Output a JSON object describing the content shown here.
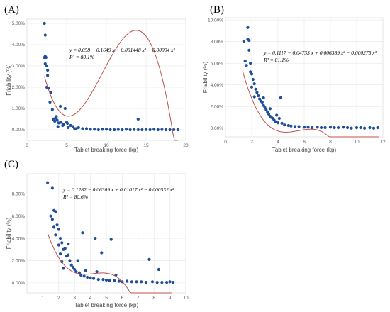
{
  "chart_data": [
    {
      "type": "scatter",
      "panel": "(A)",
      "xlabel": "Tablet breaking force (kp)",
      "ylabel": "Friability (%)",
      "xlim": [
        0,
        20
      ],
      "ylim": [
        -0.5,
        5.2
      ],
      "x_ticks": [
        0,
        5,
        10,
        15,
        20
      ],
      "y_ticks": [
        "0.00%",
        "1.00%",
        "2.00%",
        "3.00%",
        "4.00%",
        "5.00%"
      ],
      "y_tick_values": [
        0,
        1,
        2,
        3,
        4,
        5
      ],
      "equation": "y  =  0.058 − 0.1649 x + 0.001448 x² − 0.00004 x³",
      "r2": "R² = 80.1%",
      "fit_coefficients": [
        7.02,
        -2.8,
        0.37,
        -0.013
      ],
      "fit_range": [
        2.2,
        19
      ],
      "point_color": "#1f4e9b",
      "curve_color": "#c0504d",
      "points": [
        [
          2.2,
          5.0
        ],
        [
          2.3,
          4.45
        ],
        [
          2.2,
          3.4
        ],
        [
          2.3,
          3.45
        ],
        [
          2.4,
          3.4
        ],
        [
          2.5,
          3.0
        ],
        [
          2.3,
          3.1
        ],
        [
          2.6,
          2.8
        ],
        [
          2.6,
          2.55
        ],
        [
          2.7,
          1.95
        ],
        [
          2.5,
          2.0
        ],
        [
          3.0,
          1.75
        ],
        [
          3.2,
          0.95
        ],
        [
          3.6,
          0.55
        ],
        [
          3.7,
          0.62
        ],
        [
          3.5,
          0.4
        ],
        [
          3.8,
          0.45
        ],
        [
          4.0,
          0.32
        ],
        [
          4.2,
          1.1
        ],
        [
          4.3,
          0.35
        ],
        [
          4.6,
          0.25
        ],
        [
          4.8,
          1.0
        ],
        [
          5.0,
          0.35
        ],
        [
          5.1,
          0.3
        ],
        [
          5.2,
          0.1
        ],
        [
          5.5,
          0.2
        ],
        [
          5.8,
          0.15
        ],
        [
          6.0,
          0.05
        ],
        [
          6.5,
          0.1
        ],
        [
          7.0,
          0.05
        ],
        [
          7.5,
          0.05
        ],
        [
          8.0,
          0.02
        ],
        [
          8.5,
          0.02
        ],
        [
          9.0,
          0.0
        ],
        [
          9.5,
          0.02
        ],
        [
          10.0,
          0.02
        ],
        [
          10.5,
          0.0
        ],
        [
          11.0,
          0.0
        ],
        [
          11.5,
          0.01
        ],
        [
          12.0,
          0.0
        ],
        [
          12.5,
          0.02
        ],
        [
          13.0,
          0.0
        ],
        [
          13.5,
          0.01
        ],
        [
          14.0,
          0.0
        ],
        [
          14.5,
          0.0
        ],
        [
          15.0,
          0.01
        ],
        [
          15.5,
          0.0
        ],
        [
          16.0,
          0.02
        ],
        [
          16.5,
          0.0
        ],
        [
          17.0,
          0.01
        ],
        [
          17.5,
          0.0
        ],
        [
          18.0,
          0.0
        ],
        [
          18.5,
          0.0
        ],
        [
          19.0,
          0.0
        ],
        [
          14.0,
          0.5
        ],
        [
          4.5,
          0.2
        ],
        [
          3.9,
          0.15
        ],
        [
          6.2,
          0.05
        ],
        [
          3.3,
          0.5
        ],
        [
          2.9,
          1.3
        ]
      ]
    },
    {
      "type": "scatter",
      "panel": "(B)",
      "xlabel": "Tablet breaking force (kp)",
      "ylabel": "Friability (%)",
      "xlim": [
        0,
        12
      ],
      "ylim": [
        -0.8,
        10.2
      ],
      "x_ticks": [
        0,
        2,
        4,
        6,
        8,
        10,
        12
      ],
      "y_ticks": [
        "0.00%",
        "2.00%",
        "4.00%",
        "6.00%",
        "8.00%",
        "10.00%"
      ],
      "y_tick_values": [
        0,
        2,
        4,
        6,
        8,
        10
      ],
      "equation": "y  =  0.1117 − 0.04733 x + 0.006389 x² − 0.000275 x³",
      "r2": "R² = 81.1%",
      "fit_coefficients": [
        12.96,
        -7.59,
        1.41,
        -0.0848
      ],
      "fit_range": [
        1.3,
        11.7
      ],
      "point_color": "#1f4e9b",
      "curve_color": "#c0504d",
      "points": [
        [
          1.4,
          8.0
        ],
        [
          1.7,
          9.3
        ],
        [
          1.7,
          8.2
        ],
        [
          1.8,
          8.1
        ],
        [
          1.8,
          7.2
        ],
        [
          1.5,
          6.2
        ],
        [
          1.9,
          6.0
        ],
        [
          1.6,
          5.8
        ],
        [
          1.9,
          5.2
        ],
        [
          2.0,
          5.0
        ],
        [
          2.1,
          4.5
        ],
        [
          2.2,
          4.1
        ],
        [
          2.0,
          3.8
        ],
        [
          2.3,
          3.6
        ],
        [
          2.4,
          3.3
        ],
        [
          2.5,
          3.0
        ],
        [
          2.6,
          2.7
        ],
        [
          2.2,
          2.9
        ],
        [
          2.7,
          2.5
        ],
        [
          2.8,
          2.4
        ],
        [
          2.9,
          2.1
        ],
        [
          3.0,
          1.9
        ],
        [
          3.1,
          1.7
        ],
        [
          3.2,
          1.5
        ],
        [
          3.3,
          1.3
        ],
        [
          3.4,
          1.1
        ],
        [
          3.5,
          1.0
        ],
        [
          3.6,
          0.9
        ],
        [
          3.7,
          0.75
        ],
        [
          3.8,
          0.6
        ],
        [
          4.0,
          0.5
        ],
        [
          4.2,
          2.8
        ],
        [
          4.3,
          0.45
        ],
        [
          4.5,
          0.3
        ],
        [
          4.8,
          0.25
        ],
        [
          5.0,
          0.2
        ],
        [
          5.3,
          0.15
        ],
        [
          5.6,
          0.15
        ],
        [
          6.0,
          0.1
        ],
        [
          6.3,
          0.1
        ],
        [
          6.6,
          0.05
        ],
        [
          7.0,
          0.1
        ],
        [
          7.3,
          0.05
        ],
        [
          7.6,
          0.05
        ],
        [
          8.0,
          0.1
        ],
        [
          8.3,
          0.05
        ],
        [
          8.6,
          0.05
        ],
        [
          9.0,
          0.1
        ],
        [
          9.3,
          0.05
        ],
        [
          9.6,
          0.0
        ],
        [
          10.0,
          0.05
        ],
        [
          10.3,
          0.05
        ],
        [
          10.6,
          0.0
        ],
        [
          11.0,
          0.05
        ],
        [
          11.3,
          0.0
        ],
        [
          11.6,
          0.05
        ],
        [
          3.9,
          1.2
        ],
        [
          3.4,
          1.8
        ],
        [
          2.9,
          2.8
        ],
        [
          4.1,
          0.9
        ]
      ]
    },
    {
      "type": "scatter",
      "panel": "(C)",
      "xlabel": "Tablet breaking force (kp)",
      "ylabel": "Friability (%)",
      "xlim": [
        0,
        10
      ],
      "ylim": [
        -0.9,
        9.8
      ],
      "x_ticks": [
        1,
        2,
        3,
        4,
        5,
        6,
        7,
        8,
        9,
        10
      ],
      "y_ticks": [
        "0.00%",
        "2.00%",
        "4.00%",
        "6.00%",
        "8.00%"
      ],
      "y_tick_values": [
        0,
        2,
        4,
        6,
        8
      ],
      "equation": "y  =  0.1282 − 0.06309 x + 0.01017 x² − 0.000532 x³",
      "r2": "R² = 80.6%",
      "fit_coefficients": [
        12.67,
        -8.79,
        2.134,
        -0.1696
      ],
      "fit_range": [
        1.3,
        9.1
      ],
      "point_color": "#1f4e9b",
      "curve_color": "#c0504d",
      "points": [
        [
          1.3,
          9.0
        ],
        [
          1.6,
          8.5
        ],
        [
          1.5,
          6.0
        ],
        [
          1.7,
          6.5
        ],
        [
          1.8,
          6.4
        ],
        [
          1.6,
          5.7
        ],
        [
          1.7,
          5.0
        ],
        [
          1.9,
          5.2
        ],
        [
          2.0,
          4.8
        ],
        [
          1.8,
          4.3
        ],
        [
          2.1,
          4.0
        ],
        [
          2.0,
          3.4
        ],
        [
          2.2,
          3.6
        ],
        [
          2.3,
          3.0
        ],
        [
          2.4,
          3.1
        ],
        [
          2.1,
          2.6
        ],
        [
          2.5,
          2.4
        ],
        [
          2.6,
          2.5
        ],
        [
          2.2,
          1.9
        ],
        [
          2.7,
          2.0
        ],
        [
          2.8,
          1.6
        ],
        [
          2.9,
          1.4
        ],
        [
          3.0,
          1.2
        ],
        [
          3.1,
          1.0
        ],
        [
          3.3,
          0.9
        ],
        [
          3.5,
          4.5
        ],
        [
          3.4,
          0.7
        ],
        [
          3.6,
          0.6
        ],
        [
          3.8,
          0.5
        ],
        [
          4.0,
          0.45
        ],
        [
          4.2,
          0.4
        ],
        [
          4.3,
          4.0
        ],
        [
          4.5,
          0.3
        ],
        [
          4.7,
          2.7
        ],
        [
          4.8,
          0.3
        ],
        [
          5.0,
          0.25
        ],
        [
          5.2,
          0.2
        ],
        [
          5.3,
          3.9
        ],
        [
          5.5,
          0.2
        ],
        [
          5.8,
          0.15
        ],
        [
          6.0,
          0.1
        ],
        [
          6.3,
          0.15
        ],
        [
          6.6,
          0.1
        ],
        [
          6.9,
          0.1
        ],
        [
          7.2,
          0.1
        ],
        [
          7.5,
          0.05
        ],
        [
          7.7,
          2.1
        ],
        [
          7.9,
          0.1
        ],
        [
          8.2,
          0.05
        ],
        [
          8.3,
          1.2
        ],
        [
          8.5,
          0.05
        ],
        [
          8.8,
          0.05
        ],
        [
          9.0,
          0.1
        ],
        [
          9.2,
          0.05
        ],
        [
          2.3,
          1.3
        ],
        [
          2.6,
          3.5
        ],
        [
          3.2,
          2.0
        ],
        [
          3.7,
          1.1
        ],
        [
          4.4,
          1.0
        ],
        [
          5.6,
          0.7
        ]
      ]
    }
  ]
}
